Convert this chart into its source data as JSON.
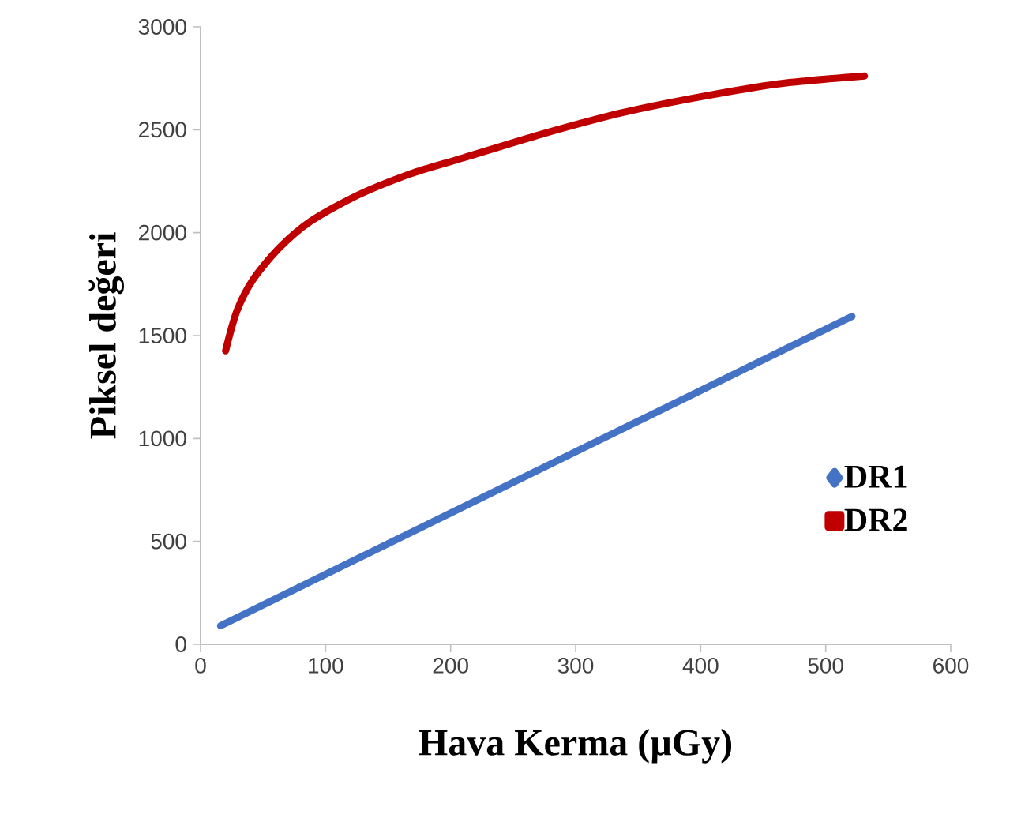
{
  "chart_data": {
    "type": "line",
    "xlabel": "Hava Kerma (µGy)",
    "ylabel": "Piksel değeri",
    "xlim": [
      0,
      600
    ],
    "xticks": [
      0,
      100,
      200,
      300,
      400,
      500,
      600
    ],
    "ylim": [
      0,
      3000
    ],
    "yticks": [
      0,
      500,
      1000,
      1500,
      2000,
      2500,
      3000
    ],
    "legend": "right",
    "grid": false,
    "line_style": "solid",
    "series": [
      {
        "name": "DR1",
        "color": "#4472c4",
        "x": [
          16,
          521
        ],
        "values": [
          90,
          1593
        ]
      },
      {
        "name": "DR2",
        "color": "#c00000",
        "x": [
          20,
          29,
          42,
          63,
          88,
          126,
          168,
          210,
          273,
          336,
          399,
          462,
          531
        ],
        "values": [
          1426,
          1618,
          1772,
          1926,
          2055,
          2183,
          2286,
          2363,
          2479,
          2581,
          2659,
          2723,
          2761
        ]
      }
    ]
  }
}
